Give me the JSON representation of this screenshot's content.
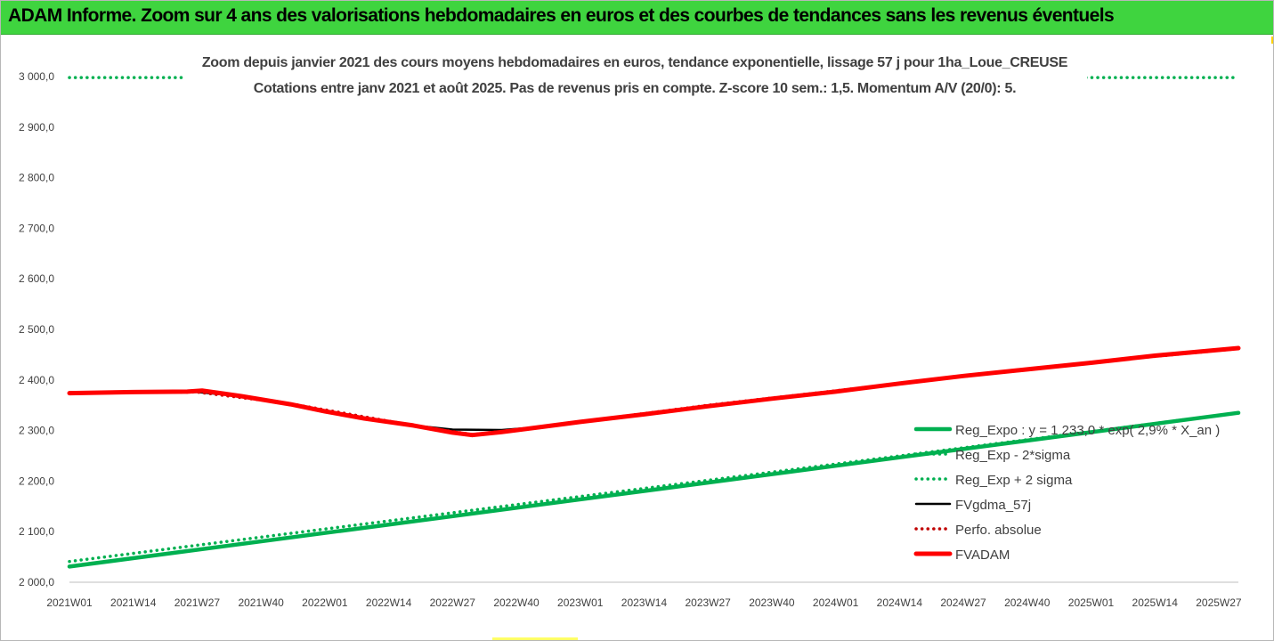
{
  "header": {
    "title": "ADAM Informe. Zoom sur 4 ans des valorisations hebdomadaires en euros et des courbes de tendances sans les revenus éventuels"
  },
  "colors": {
    "header_bg": "#3fd43f",
    "trend_green": "#00b050",
    "fvadam_red": "#ff0000",
    "fvgdma_black": "#000000",
    "perfo_red": "#c00000"
  },
  "chart_data": {
    "type": "line",
    "title_lines": [
      "Zoom depuis janvier 2021 des cours moyens hebdomadaires en euros, tendance exponentielle, lissage 57 j pour 1ha_Loue_CREUSE",
      "Cotations entre janv 2021 et août 2025.  Pas de revenus pris en compte. Z-score 10 sem.: 1,5. Momentum A/V (20/0): 5."
    ],
    "xlabel": "",
    "ylabel": "",
    "ylim": [
      2000,
      3000
    ],
    "y_ticks": [
      "2 000,0",
      "2 100,0",
      "2 200,0",
      "2 300,0",
      "2 400,0",
      "2 500,0",
      "2 600,0",
      "2 700,0",
      "2 800,0",
      "2 900,0",
      "3 000,0"
    ],
    "x_ticks": [
      "2021W01",
      "2021W14",
      "2021W27",
      "2021W40",
      "2022W01",
      "2022W14",
      "2022W27",
      "2022W40",
      "2023W01",
      "2023W14",
      "2023W27",
      "2023W40",
      "2024W01",
      "2024W14",
      "2024W27",
      "2024W40",
      "2025W01",
      "2025W14",
      "2025W27"
    ],
    "x_range_weeks": [
      0,
      238
    ],
    "grid": false,
    "legend_position": "bottom-right",
    "series": [
      {
        "name": "Reg_Expo : y = 1 233,0 * exp( 2,9% *  X_an )",
        "style": "solid-thick",
        "color": "#00b050",
        "points": [
          [
            0,
            2031
          ],
          [
            238,
            2335
          ]
        ]
      },
      {
        "name": "Reg_Exp - 2*sigma",
        "style": "dotted",
        "color": "#00b050",
        "points": [
          [
            0,
            2041
          ],
          [
            238,
            2335
          ]
        ]
      },
      {
        "name": "Reg_Exp + 2 sigma",
        "style": "dotted",
        "color": "#00b050",
        "points": [
          [
            0,
            2998
          ],
          [
            238,
            2998
          ]
        ]
      },
      {
        "name": "FVgdma_57j",
        "style": "solid",
        "color": "#000000",
        "points": [
          [
            0,
            2375
          ],
          [
            13,
            2376
          ],
          [
            26,
            2376
          ],
          [
            35,
            2368
          ],
          [
            45,
            2352
          ],
          [
            52,
            2338
          ],
          [
            60,
            2325
          ],
          [
            70,
            2310
          ],
          [
            78,
            2302
          ],
          [
            88,
            2301
          ],
          [
            96,
            2307
          ],
          [
            104,
            2317
          ],
          [
            117,
            2333
          ],
          [
            130,
            2350
          ],
          [
            143,
            2364
          ],
          [
            156,
            2378
          ],
          [
            169,
            2393
          ],
          [
            182,
            2408
          ],
          [
            195,
            2421
          ],
          [
            208,
            2435
          ],
          [
            221,
            2449
          ],
          [
            238,
            2462
          ]
        ]
      },
      {
        "name": "Perfo. absolue",
        "style": "dotted",
        "color": "#c00000",
        "points": [
          [
            0,
            2375
          ],
          [
            26,
            2376
          ],
          [
            45,
            2353
          ],
          [
            70,
            2310
          ],
          [
            82,
            2292
          ],
          [
            96,
            2307
          ],
          [
            130,
            2350
          ],
          [
            169,
            2393
          ],
          [
            208,
            2435
          ],
          [
            238,
            2462
          ]
        ]
      },
      {
        "name": "FVADAM",
        "style": "solid-thick",
        "color": "#ff0000",
        "points": [
          [
            0,
            2374
          ],
          [
            13,
            2376
          ],
          [
            24,
            2377
          ],
          [
            27,
            2379
          ],
          [
            35,
            2368
          ],
          [
            45,
            2352
          ],
          [
            52,
            2338
          ],
          [
            60,
            2324
          ],
          [
            70,
            2310
          ],
          [
            78,
            2296
          ],
          [
            82,
            2291
          ],
          [
            88,
            2297
          ],
          [
            96,
            2307
          ],
          [
            104,
            2317
          ],
          [
            117,
            2332
          ],
          [
            130,
            2348
          ],
          [
            143,
            2363
          ],
          [
            156,
            2377
          ],
          [
            169,
            2393
          ],
          [
            182,
            2408
          ],
          [
            195,
            2421
          ],
          [
            208,
            2434
          ],
          [
            221,
            2448
          ],
          [
            238,
            2463
          ]
        ]
      }
    ]
  }
}
